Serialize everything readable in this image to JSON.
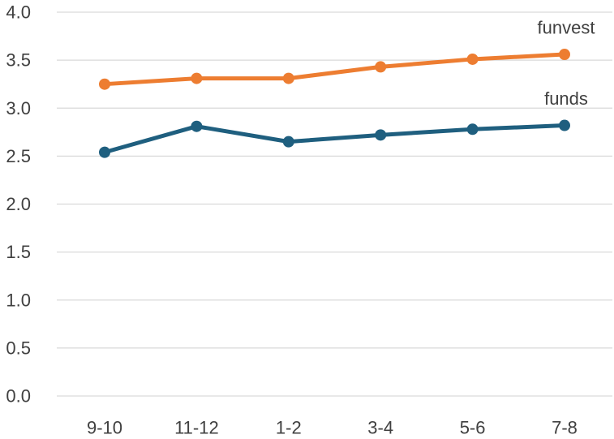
{
  "chart_data": {
    "type": "line",
    "categories": [
      "9-10",
      "11-12",
      "1-2",
      "3-4",
      "5-6",
      "7-8"
    ],
    "ylim": [
      0,
      4
    ],
    "yticks": [
      "0.0",
      "0.5",
      "1.0",
      "1.5",
      "2.0",
      "2.5",
      "3.0",
      "3.5",
      "4.0"
    ],
    "grid": true,
    "legend": "none",
    "series": [
      {
        "name": "funvest",
        "color": "#ed7d31",
        "values": [
          3.25,
          3.31,
          3.31,
          3.43,
          3.51,
          3.56
        ]
      },
      {
        "name": "funds",
        "color": "#1f5f7f",
        "values": [
          2.54,
          2.81,
          2.65,
          2.72,
          2.78,
          2.82
        ]
      }
    ]
  }
}
